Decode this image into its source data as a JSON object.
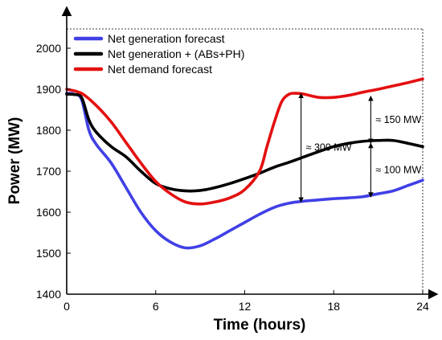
{
  "chart_data": {
    "type": "line",
    "xlabel": "Time (hours)",
    "ylabel": "Power (MW)",
    "xlim": [
      0,
      24
    ],
    "ylim": [
      1400,
      2050
    ],
    "x_ticks": [
      0,
      6,
      12,
      18,
      24
    ],
    "y_ticks": [
      1400,
      1500,
      1600,
      1700,
      1800,
      1900,
      2000
    ],
    "legend_position": "top-left",
    "grid": false,
    "series": [
      {
        "name": "Net generation forecast",
        "color": "#4040e6",
        "x": [
          0,
          0.5,
          1,
          1.5,
          2,
          3,
          4,
          5,
          6,
          7,
          8,
          9,
          10,
          11,
          12,
          13,
          14,
          15,
          16,
          17,
          18,
          19,
          20,
          21,
          22,
          23,
          24
        ],
        "y": [
          1890,
          1888,
          1875,
          1800,
          1765,
          1720,
          1660,
          1600,
          1555,
          1527,
          1513,
          1518,
          1535,
          1555,
          1575,
          1595,
          1612,
          1622,
          1627,
          1630,
          1633,
          1635,
          1638,
          1645,
          1652,
          1665,
          1678
        ]
      },
      {
        "name": "Net generation + (ABs+PH)",
        "color": "#000000",
        "x": [
          0,
          0.5,
          1,
          1.5,
          2,
          3,
          4,
          5,
          6,
          7,
          8,
          9,
          10,
          11,
          12,
          13,
          14,
          15,
          16,
          17,
          18,
          19,
          20,
          21,
          22,
          23,
          24
        ],
        "y": [
          1888,
          1887,
          1880,
          1825,
          1795,
          1760,
          1735,
          1700,
          1670,
          1657,
          1652,
          1653,
          1660,
          1670,
          1682,
          1695,
          1710,
          1722,
          1735,
          1748,
          1760,
          1768,
          1773,
          1775,
          1775,
          1768,
          1760
        ]
      },
      {
        "name": "Net demand forecast",
        "color": "#e41010",
        "x": [
          0,
          1,
          2,
          3,
          4,
          5,
          6,
          7,
          8,
          9,
          10,
          11,
          12,
          13,
          13.5,
          14,
          14.5,
          15,
          15.5,
          16,
          17,
          18,
          19,
          20,
          21,
          22,
          23,
          24
        ],
        "y": [
          1900,
          1890,
          1860,
          1820,
          1770,
          1720,
          1675,
          1645,
          1625,
          1620,
          1625,
          1635,
          1655,
          1700,
          1760,
          1820,
          1870,
          1888,
          1890,
          1888,
          1880,
          1880,
          1885,
          1893,
          1900,
          1908,
          1916,
          1925
        ]
      }
    ],
    "annotations": [
      {
        "text": "≈ 300 MW",
        "x": 15.8,
        "y_from": 1625,
        "y_to": 1890
      },
      {
        "text": "≈ 150 MW",
        "x": 20.5,
        "y_from": 1768,
        "y_to": 1883
      },
      {
        "text": "≈ 100 MW",
        "x": 20.5,
        "y_from": 1637,
        "y_to": 1768
      }
    ]
  }
}
